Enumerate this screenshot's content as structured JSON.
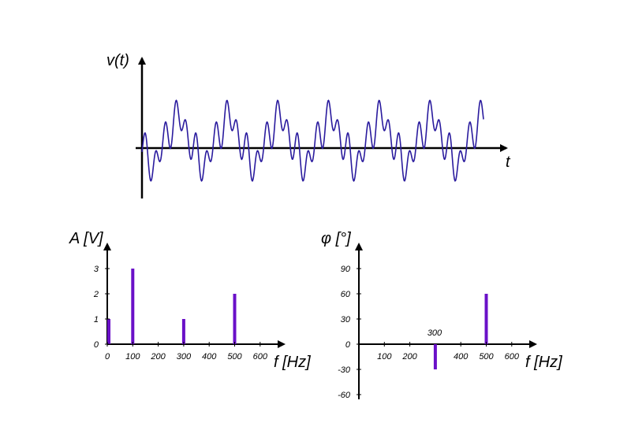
{
  "colors": {
    "axis": "#000000",
    "signal": "#2a1b9e",
    "bar": "#6a10c8"
  },
  "chart_data": [
    {
      "type": "line",
      "ylabel": "v(t)",
      "xlabel": "t",
      "grid": false,
      "components": [
        {
          "frequency_hz": 0,
          "amplitude": 1,
          "phase_deg": 0
        },
        {
          "frequency_hz": 100,
          "amplitude": 3,
          "phase_deg": 0
        },
        {
          "frequency_hz": 300,
          "amplitude": 1,
          "phase_deg": -30
        },
        {
          "frequency_hz": 500,
          "amplitude": 2,
          "phase_deg": 60
        }
      ]
    },
    {
      "type": "bar",
      "ylabel": "A [V]",
      "xlabel": "f [Hz]",
      "x_ticks": [
        0,
        100,
        200,
        300,
        400,
        500,
        600
      ],
      "y_ticks": [
        0,
        1,
        2,
        3
      ],
      "x": [
        0,
        100,
        300,
        500
      ],
      "values": [
        1,
        3,
        1,
        2
      ],
      "xlim": [
        0,
        650
      ],
      "ylim": [
        0,
        3.6
      ],
      "grid": false
    },
    {
      "type": "bar",
      "ylabel": "φ [°]",
      "xlabel": "f [Hz]",
      "x_ticks": [
        100,
        200,
        400,
        500,
        600
      ],
      "y_ticks": [
        90,
        60,
        30,
        0,
        -30,
        -60
      ],
      "x": [
        300,
        500
      ],
      "values": [
        -30,
        60
      ],
      "annotations": [
        "300"
      ],
      "xlim": [
        0,
        650
      ],
      "ylim": [
        -65,
        115
      ],
      "grid": false
    }
  ]
}
